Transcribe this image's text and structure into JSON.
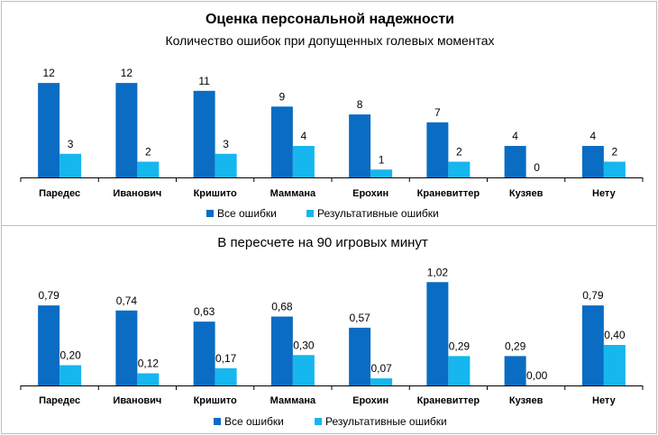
{
  "title": "Оценка персональной надежности",
  "colors": {
    "all_errors": "#0a6cc2",
    "decisive_errors": "#16b6ee"
  },
  "chart_data": [
    {
      "type": "bar",
      "subtitle": "Количество ошибок при допущенных голевых моментах",
      "categories": [
        "Паредес",
        "Иванович",
        "Кришито",
        "Маммана",
        "Ерохин",
        "Краневиттер",
        "Кузяев",
        "Нету"
      ],
      "ylim": [
        0,
        13.5
      ],
      "series": [
        {
          "name": "Все ошибки",
          "values": [
            12,
            12,
            11,
            9,
            8,
            7,
            4,
            4
          ],
          "labels": [
            "12",
            "12",
            "11",
            "9",
            "8",
            "7",
            "4",
            "4"
          ]
        },
        {
          "name": "Результативные ошибки",
          "values": [
            3,
            2,
            3,
            4,
            1,
            2,
            0,
            2
          ],
          "labels": [
            "3",
            "2",
            "3",
            "4",
            "1",
            "2",
            "0",
            "2"
          ]
        }
      ],
      "legend": "bottom"
    },
    {
      "type": "bar",
      "subtitle": "В пересчете на 90 игровых минут",
      "categories": [
        "Паредес",
        "Иванович",
        "Кришито",
        "Маммана",
        "Ерохин",
        "Краневиттер",
        "Кузяев",
        "Нету"
      ],
      "ylim": [
        0,
        1.2
      ],
      "series": [
        {
          "name": "Все ошибки",
          "values": [
            0.79,
            0.74,
            0.63,
            0.68,
            0.57,
            1.02,
            0.29,
            0.79
          ],
          "labels": [
            "0,79",
            "0,74",
            "0,63",
            "0,68",
            "0,57",
            "1,02",
            "0,29",
            "0,79"
          ]
        },
        {
          "name": "Результативные ошибки",
          "values": [
            0.2,
            0.12,
            0.17,
            0.3,
            0.07,
            0.29,
            0.0,
            0.4
          ],
          "labels": [
            "0,20",
            "0,12",
            "0,17",
            "0,30",
            "0,07",
            "0,29",
            "0,00",
            "0,40"
          ]
        }
      ],
      "legend": "bottom"
    }
  ]
}
